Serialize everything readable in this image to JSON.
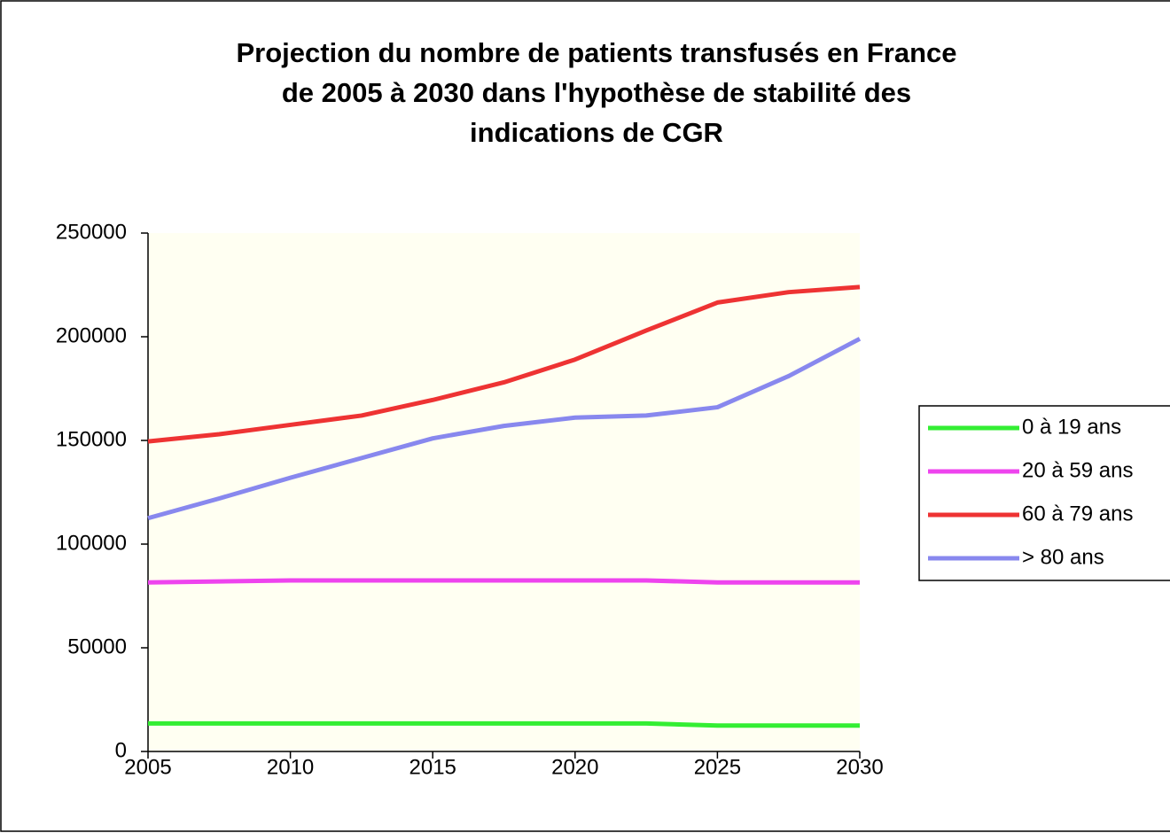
{
  "chart_data": {
    "type": "line",
    "title": [
      "Projection du nombre de patients transfusés en France",
      "de 2005 à 2030 dans l'hypothèse de stabilité des",
      "indications de CGR"
    ],
    "x": [
      2005,
      2007.5,
      2010,
      2012.5,
      2015,
      2017.5,
      2020,
      2022.5,
      2025,
      2027.5,
      2030
    ],
    "series": [
      {
        "name": "0 à 19 ans",
        "color": "#33ee33",
        "values": [
          13500,
          13500,
          13500,
          13500,
          13500,
          13500,
          13500,
          13500,
          12500,
          12500,
          12500
        ]
      },
      {
        "name": "20 à 59 ans",
        "color": "#ee44ee",
        "values": [
          81500,
          82000,
          82500,
          82500,
          82500,
          82500,
          82500,
          82500,
          81500,
          81500,
          81500
        ]
      },
      {
        "name": "60 à 79 ans",
        "color": "#ee3333",
        "values": [
          149500,
          153000,
          157500,
          162000,
          169500,
          178000,
          189000,
          203000,
          216500,
          221500,
          224000
        ]
      },
      {
        "name": "> 80 ans",
        "color": "#8888ee",
        "values": [
          112500,
          122000,
          132000,
          141500,
          151000,
          157000,
          161000,
          162000,
          166000,
          181000,
          199000
        ]
      }
    ],
    "xlim": [
      2005,
      2030
    ],
    "xticks": [
      2005,
      2010,
      2015,
      2020,
      2025,
      2030
    ],
    "ylim": [
      0,
      250000
    ],
    "yticks": [
      0,
      50000,
      100000,
      150000,
      200000,
      250000
    ],
    "grid": false,
    "legend": "right"
  }
}
